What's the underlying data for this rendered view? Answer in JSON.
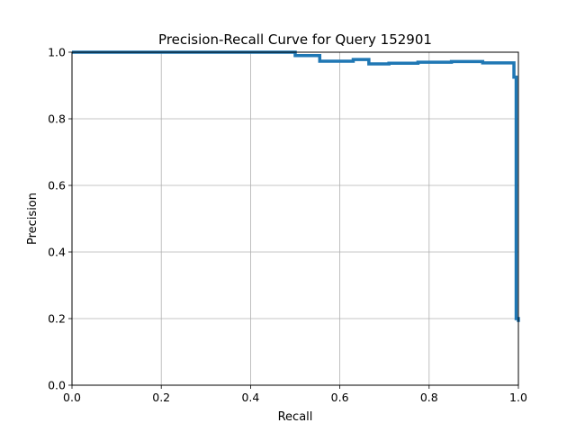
{
  "chart_data": {
    "type": "line",
    "title": "Precision-Recall Curve for Query 152901",
    "xlabel": "Recall",
    "ylabel": "Precision",
    "xlim": [
      0.0,
      1.0
    ],
    "ylim": [
      0.0,
      1.0
    ],
    "xticks": [
      "0.0",
      "0.2",
      "0.4",
      "0.6",
      "0.8",
      "1.0"
    ],
    "yticks": [
      "0.0",
      "0.2",
      "0.4",
      "0.6",
      "0.8",
      "1.0"
    ],
    "grid": true,
    "line_color": "#1f77b4",
    "series": [
      {
        "x": [
          0.0,
          0.5,
          0.5,
          0.555,
          0.555,
          0.63,
          0.63,
          0.665,
          0.665,
          0.71,
          0.71,
          0.775,
          0.775,
          0.85,
          0.85,
          0.92,
          0.92,
          0.99,
          0.99,
          0.995,
          0.995,
          1.0,
          1.0
        ],
        "y": [
          1.0,
          1.0,
          0.99,
          0.99,
          0.973,
          0.973,
          0.978,
          0.978,
          0.965,
          0.965,
          0.967,
          0.967,
          0.97,
          0.97,
          0.972,
          0.972,
          0.968,
          0.968,
          0.925,
          0.925,
          0.2,
          0.2,
          0.19
        ]
      }
    ]
  }
}
